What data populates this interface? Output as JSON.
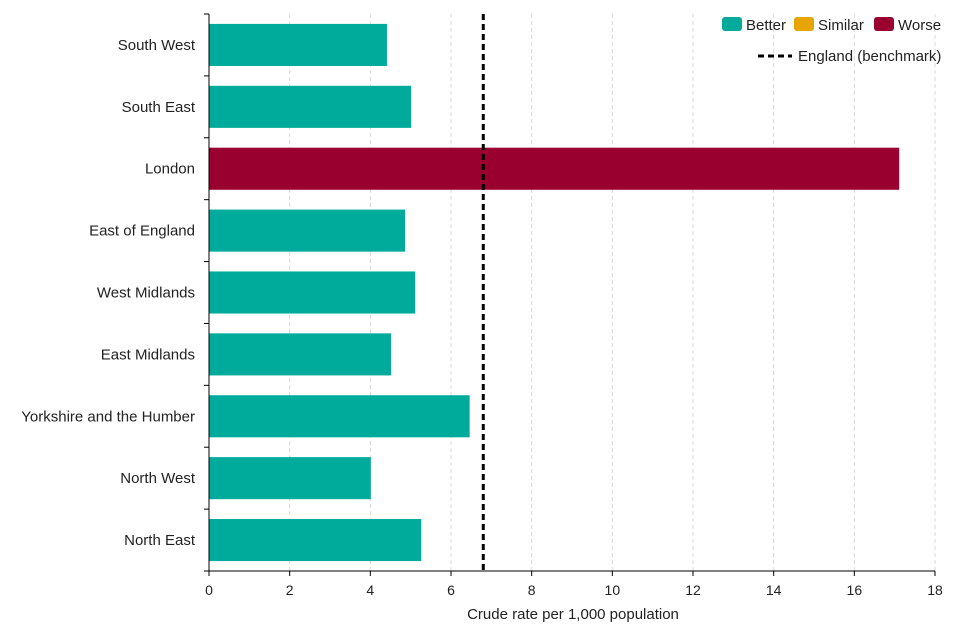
{
  "chart_data": {
    "type": "bar",
    "orientation": "horizontal",
    "title": "",
    "xlabel": "Crude rate per 1,000 population",
    "ylabel": "",
    "xlim": [
      0,
      18
    ],
    "xticks": [
      0,
      2,
      4,
      6,
      8,
      10,
      12,
      14,
      16,
      18
    ],
    "grid": "vertical dashed",
    "legend_position": "top-right",
    "categories": [
      "South West",
      "South East",
      "London",
      "East of England",
      "West Midlands",
      "East Midlands",
      "Yorkshire and the Humber",
      "North West",
      "North East"
    ],
    "values": [
      4.4,
      5.0,
      17.1,
      4.85,
      5.1,
      4.5,
      6.45,
      4.0,
      5.25
    ],
    "status": [
      "Better",
      "Better",
      "Worse",
      "Better",
      "Better",
      "Better",
      "Better",
      "Better",
      "Better"
    ],
    "benchmark": {
      "label": "England (benchmark)",
      "value": 6.8
    },
    "legend": [
      {
        "label": "Better",
        "color": "#00ab9b"
      },
      {
        "label": "Similar",
        "color": "#e6a500"
      },
      {
        "label": "Worse",
        "color": "#990030"
      }
    ]
  }
}
